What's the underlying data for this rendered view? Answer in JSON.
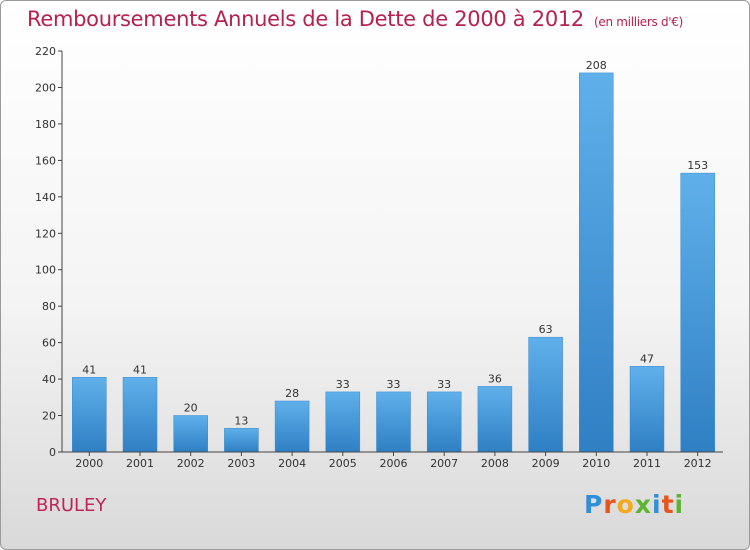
{
  "header": {
    "title": "Remboursements Annuels de la Dette de 2000 à 2012",
    "unit": "(en milliers d'€)"
  },
  "footer": {
    "commune": "BRULEY",
    "logo_letters": [
      "P",
      "r",
      "o",
      "x",
      "i",
      "t",
      "i"
    ],
    "logo_colors": [
      "#2f8fd8",
      "#e8541e",
      "#f2a91c",
      "#5cb531",
      "#2f8fd8",
      "#e8541e",
      "#5cb531"
    ]
  },
  "chart_data": {
    "type": "bar",
    "title": "Remboursements Annuels de la Dette de 2000 à 2012",
    "xlabel": "",
    "ylabel": "",
    "categories": [
      "2000",
      "2001",
      "2002",
      "2003",
      "2004",
      "2005",
      "2006",
      "2007",
      "2008",
      "2009",
      "2010",
      "2011",
      "2012"
    ],
    "values": [
      41,
      41,
      20,
      13,
      28,
      33,
      33,
      33,
      36,
      63,
      208,
      47,
      153
    ],
    "ylim": [
      0,
      220
    ],
    "yticks": [
      0,
      20,
      40,
      60,
      80,
      100,
      120,
      140,
      160,
      180,
      200,
      220
    ],
    "grid": false,
    "bar_color": "#4a9fe0"
  }
}
